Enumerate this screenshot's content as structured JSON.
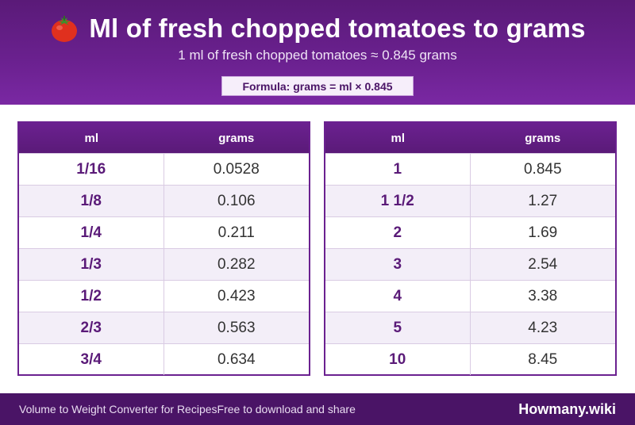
{
  "header": {
    "icon": "tomato-icon",
    "title": "Ml of fresh chopped tomatoes to grams",
    "subtitle": "1 ml of fresh chopped tomatoes ≈ 0.845 grams",
    "formula": "Formula: grams = ml × 0.845"
  },
  "colors": {
    "header_purple": "#6b2190",
    "footer_purple": "#4a1466",
    "alt_row": "#f3eef8",
    "ml_text": "#5a1a78"
  },
  "tables": [
    {
      "headers": [
        "ml",
        "grams"
      ],
      "rows": [
        {
          "ml": "1/16",
          "grams": "0.0528"
        },
        {
          "ml": "1/8",
          "grams": "0.106"
        },
        {
          "ml": "1/4",
          "grams": "0.211"
        },
        {
          "ml": "1/3",
          "grams": "0.282"
        },
        {
          "ml": "1/2",
          "grams": "0.423"
        },
        {
          "ml": "2/3",
          "grams": "0.563"
        },
        {
          "ml": "3/4",
          "grams": "0.634"
        }
      ]
    },
    {
      "headers": [
        "ml",
        "grams"
      ],
      "rows": [
        {
          "ml": "1",
          "grams": "0.845"
        },
        {
          "ml": "1 1/2",
          "grams": "1.27"
        },
        {
          "ml": "2",
          "grams": "1.69"
        },
        {
          "ml": "3",
          "grams": "2.54"
        },
        {
          "ml": "4",
          "grams": "3.38"
        },
        {
          "ml": "5",
          "grams": "4.23"
        },
        {
          "ml": "10",
          "grams": "8.45"
        }
      ]
    }
  ],
  "footer": {
    "text_1": "Volume to Weight Converter for Recipes",
    "text_2": "Free to download and share",
    "brand": "Howmany.wiki"
  }
}
